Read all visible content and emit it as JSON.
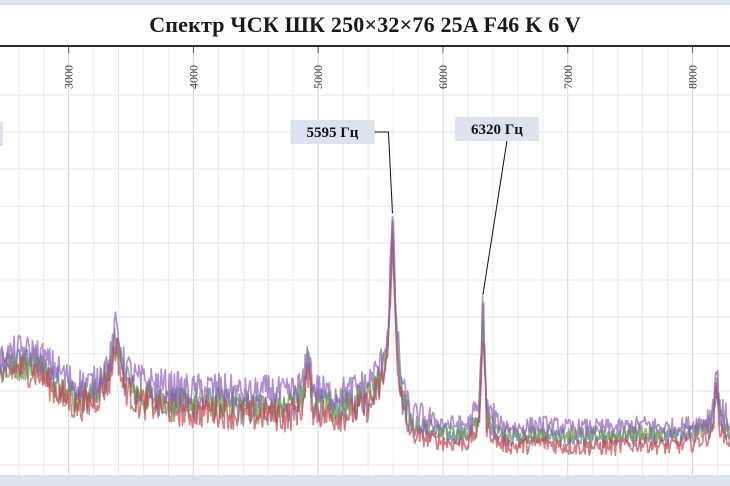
{
  "chart_data": {
    "type": "line",
    "title": "Спектр ЧСК ШК 250×32×76 25A F46 K 6 V",
    "xlabel": "",
    "ylabel": "",
    "xlim": [
      2450,
      8300
    ],
    "ylim": [
      0,
      100
    ],
    "x_ticks": [
      "3000",
      "4000",
      "5000",
      "6000",
      "7000",
      "8000"
    ],
    "grid": true,
    "legend": "none",
    "series": [
      {
        "color": "#5a78b0",
        "points": [
          [
            2450,
            26
          ],
          [
            2600,
            28
          ],
          [
            2750,
            27
          ],
          [
            2900,
            23
          ],
          [
            3050,
            19
          ],
          [
            3200,
            18
          ],
          [
            3330,
            25
          ],
          [
            3380,
            35
          ],
          [
            3430,
            24
          ],
          [
            3550,
            19
          ],
          [
            3700,
            18
          ],
          [
            3850,
            17
          ],
          [
            4000,
            16
          ],
          [
            4150,
            17
          ],
          [
            4300,
            16
          ],
          [
            4450,
            15
          ],
          [
            4600,
            16
          ],
          [
            4750,
            15
          ],
          [
            4880,
            18
          ],
          [
            4920,
            27
          ],
          [
            4960,
            17
          ],
          [
            5100,
            15
          ],
          [
            5250,
            16
          ],
          [
            5400,
            18
          ],
          [
            5500,
            23
          ],
          [
            5560,
            32
          ],
          [
            5595,
            64
          ],
          [
            5630,
            32
          ],
          [
            5680,
            16
          ],
          [
            5750,
            10
          ],
          [
            5900,
            9
          ],
          [
            6050,
            8
          ],
          [
            6200,
            8
          ],
          [
            6290,
            12
          ],
          [
            6320,
            42
          ],
          [
            6350,
            12
          ],
          [
            6450,
            8
          ],
          [
            6600,
            7
          ],
          [
            6800,
            8
          ],
          [
            7000,
            7
          ],
          [
            7200,
            7
          ],
          [
            7400,
            7
          ],
          [
            7600,
            8
          ],
          [
            7800,
            7
          ],
          [
            8000,
            8
          ],
          [
            8150,
            10
          ],
          [
            8190,
            22
          ],
          [
            8230,
            11
          ],
          [
            8300,
            8
          ]
        ]
      },
      {
        "color": "#6a9a4a",
        "points": [
          [
            2450,
            25
          ],
          [
            2600,
            27
          ],
          [
            2750,
            28
          ],
          [
            2900,
            22
          ],
          [
            3050,
            18
          ],
          [
            3200,
            19
          ],
          [
            3330,
            26
          ],
          [
            3380,
            36
          ],
          [
            3430,
            25
          ],
          [
            3550,
            18
          ],
          [
            3700,
            19
          ],
          [
            3850,
            16
          ],
          [
            4000,
            17
          ],
          [
            4150,
            16
          ],
          [
            4300,
            17
          ],
          [
            4450,
            16
          ],
          [
            4600,
            15
          ],
          [
            4750,
            16
          ],
          [
            4880,
            19
          ],
          [
            4920,
            28
          ],
          [
            4960,
            18
          ],
          [
            5100,
            16
          ],
          [
            5250,
            17
          ],
          [
            5400,
            19
          ],
          [
            5500,
            24
          ],
          [
            5560,
            33
          ],
          [
            5595,
            66
          ],
          [
            5630,
            33
          ],
          [
            5680,
            17
          ],
          [
            5750,
            11
          ],
          [
            5900,
            10
          ],
          [
            6050,
            9
          ],
          [
            6200,
            9
          ],
          [
            6290,
            13
          ],
          [
            6320,
            44
          ],
          [
            6350,
            13
          ],
          [
            6450,
            9
          ],
          [
            6600,
            8
          ],
          [
            6800,
            9
          ],
          [
            7000,
            8
          ],
          [
            7200,
            8
          ],
          [
            7400,
            8
          ],
          [
            7600,
            9
          ],
          [
            7800,
            8
          ],
          [
            8000,
            9
          ],
          [
            8150,
            11
          ],
          [
            8190,
            24
          ],
          [
            8230,
            12
          ],
          [
            8300,
            9
          ]
        ]
      },
      {
        "color": "#c4454f",
        "points": [
          [
            2450,
            24
          ],
          [
            2600,
            26
          ],
          [
            2750,
            25
          ],
          [
            2900,
            20
          ],
          [
            3050,
            16
          ],
          [
            3200,
            17
          ],
          [
            3330,
            23
          ],
          [
            3380,
            33
          ],
          [
            3430,
            22
          ],
          [
            3550,
            17
          ],
          [
            3700,
            16
          ],
          [
            3850,
            15
          ],
          [
            4000,
            14
          ],
          [
            4150,
            15
          ],
          [
            4300,
            14
          ],
          [
            4450,
            13
          ],
          [
            4600,
            14
          ],
          [
            4750,
            13
          ],
          [
            4880,
            16
          ],
          [
            4920,
            25
          ],
          [
            4960,
            15
          ],
          [
            5100,
            13
          ],
          [
            5250,
            14
          ],
          [
            5400,
            16
          ],
          [
            5500,
            21
          ],
          [
            5560,
            30
          ],
          [
            5595,
            62
          ],
          [
            5630,
            30
          ],
          [
            5680,
            14
          ],
          [
            5750,
            8
          ],
          [
            5900,
            7
          ],
          [
            6050,
            6
          ],
          [
            6200,
            6
          ],
          [
            6290,
            10
          ],
          [
            6320,
            38
          ],
          [
            6350,
            10
          ],
          [
            6450,
            6
          ],
          [
            6600,
            5
          ],
          [
            6800,
            6
          ],
          [
            7000,
            5
          ],
          [
            7200,
            5
          ],
          [
            7400,
            5
          ],
          [
            7600,
            6
          ],
          [
            7800,
            5
          ],
          [
            8000,
            6
          ],
          [
            8150,
            8
          ],
          [
            8190,
            20
          ],
          [
            8230,
            9
          ],
          [
            8300,
            6
          ]
        ]
      },
      {
        "color": "#8e5fb8",
        "points": [
          [
            2450,
            28
          ],
          [
            2600,
            31
          ],
          [
            2750,
            30
          ],
          [
            2900,
            26
          ],
          [
            3050,
            22
          ],
          [
            3200,
            22
          ],
          [
            3330,
            28
          ],
          [
            3380,
            38
          ],
          [
            3430,
            28
          ],
          [
            3550,
            23
          ],
          [
            3700,
            22
          ],
          [
            3850,
            21
          ],
          [
            4000,
            20
          ],
          [
            4150,
            21
          ],
          [
            4300,
            20
          ],
          [
            4450,
            19
          ],
          [
            4600,
            20
          ],
          [
            4750,
            19
          ],
          [
            4880,
            22
          ],
          [
            4920,
            31
          ],
          [
            4960,
            21
          ],
          [
            5100,
            19
          ],
          [
            5250,
            20
          ],
          [
            5400,
            22
          ],
          [
            5500,
            27
          ],
          [
            5560,
            36
          ],
          [
            5595,
            68
          ],
          [
            5630,
            36
          ],
          [
            5680,
            20
          ],
          [
            5750,
            13
          ],
          [
            5900,
            12
          ],
          [
            6050,
            11
          ],
          [
            6200,
            11
          ],
          [
            6290,
            15
          ],
          [
            6320,
            46
          ],
          [
            6350,
            15
          ],
          [
            6450,
            11
          ],
          [
            6600,
            10
          ],
          [
            6800,
            11
          ],
          [
            7000,
            10
          ],
          [
            7200,
            10
          ],
          [
            7400,
            10
          ],
          [
            7600,
            11
          ],
          [
            7800,
            10
          ],
          [
            8000,
            11
          ],
          [
            8150,
            13
          ],
          [
            8190,
            26
          ],
          [
            8230,
            14
          ],
          [
            8300,
            11
          ]
        ]
      }
    ],
    "annotations": [
      {
        "text": "5595 Гц",
        "x": 5595,
        "y": 68
      },
      {
        "text": "6320 Гц",
        "x": 6320,
        "y": 46
      }
    ]
  }
}
